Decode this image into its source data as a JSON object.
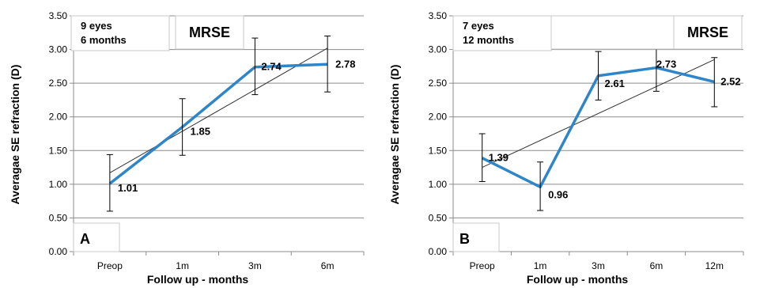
{
  "chart_data": [
    {
      "type": "line",
      "panel_label": "A",
      "box_lines": [
        "9 eyes",
        "6 months"
      ],
      "box_title": "MRSE",
      "xlabel": "Follow up - months",
      "ylabel": "Averagae SE refraction (D)",
      "categories": [
        "Preop",
        "1m",
        "3m",
        "6m"
      ],
      "yticks": [
        "0.00",
        "0.50",
        "1.00",
        "1.50",
        "2.00",
        "2.50",
        "3.00",
        "3.50"
      ],
      "ylim": [
        0,
        3.5
      ],
      "grid": true,
      "series": [
        {
          "values": [
            1.01,
            1.85,
            2.74,
            2.78
          ],
          "labels": [
            "1.01",
            "1.85",
            "2.74",
            "2.78"
          ],
          "err_low": [
            0.6,
            1.43,
            2.33,
            2.37
          ],
          "err_high": [
            1.44,
            2.27,
            3.17,
            3.2
          ]
        }
      ],
      "trendline": [
        1.17,
        3.02
      ],
      "colors": {
        "series": "#2e85c8",
        "trend": "#333333"
      }
    },
    {
      "type": "line",
      "panel_label": "B",
      "box_lines": [
        "7 eyes",
        "12 months"
      ],
      "box_title": "MRSE",
      "xlabel": "Follow up - months",
      "ylabel": "Averagae SE refraction (D)",
      "categories": [
        "Preop",
        "1m",
        "3m",
        "6m",
        "12m"
      ],
      "yticks": [
        "0.00",
        "0.50",
        "1.00",
        "1.50",
        "2.00",
        "2.50",
        "3.00",
        "3.50"
      ],
      "ylim": [
        0,
        3.5
      ],
      "grid": true,
      "series": [
        {
          "values": [
            1.39,
            0.96,
            2.61,
            2.73,
            2.52
          ],
          "labels": [
            "1.39",
            "0.96",
            "2.61",
            "2.73",
            "2.52"
          ],
          "err_low": [
            1.04,
            0.61,
            2.25,
            2.38,
            2.15
          ],
          "err_high": [
            1.75,
            1.33,
            2.97,
            3.09,
            2.88
          ]
        }
      ],
      "trendline": [
        1.25,
        2.85
      ],
      "colors": {
        "series": "#2e85c8",
        "trend": "#333333"
      }
    }
  ]
}
